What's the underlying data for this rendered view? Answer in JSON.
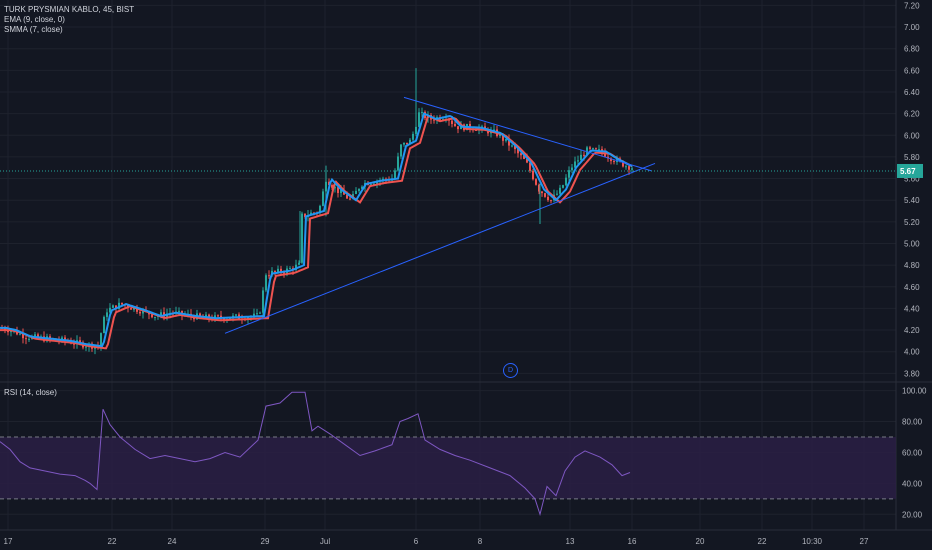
{
  "legend": {
    "symbol": "TURK PRYSMIAN KABLO, 45, BIST",
    "ema": "EMA (9, close, 0)",
    "smma": "SMMA (7, close)",
    "rsi": "RSI (14, close)"
  },
  "price_badge": "5.67",
  "d_marker": "D",
  "colors": {
    "background": "#131722",
    "grid": "#1e222d",
    "ema": "#2196f3",
    "smma": "#ef5350",
    "trendline": "#2962ff",
    "price_line": "#26a69a",
    "rsi": "#7e57c2",
    "rsi_band": "#2a1e44",
    "candle_up": "#26a69a",
    "candle_down": "#ef5350",
    "text": "#b2b5be"
  },
  "chart_data": [
    {
      "type": "candlestick",
      "title": "TURK PRYSMIAN KABLO, 45, BIST",
      "x_ticks": [
        "17",
        "22",
        "24",
        "29",
        "Jul",
        "6",
        "8",
        "13",
        "16",
        "20",
        "22",
        "10:30",
        "27"
      ],
      "y_ticks": [
        3.8,
        4.0,
        4.2,
        4.4,
        4.6,
        4.8,
        5.0,
        5.2,
        5.4,
        5.6,
        5.8,
        6.0,
        6.2,
        6.4,
        6.6,
        6.8,
        7.0,
        7.2
      ],
      "ylim": [
        3.72,
        7.25
      ],
      "last_price": 5.67,
      "series": [
        {
          "name": "EMA (9, close, 0)",
          "color": "#2196f3"
        },
        {
          "name": "SMMA (7, close)",
          "color": "#ef5350"
        }
      ],
      "close_path": [
        [
          0,
          4.22
        ],
        [
          10,
          4.2
        ],
        [
          25,
          4.14
        ],
        [
          45,
          4.12
        ],
        [
          65,
          4.1
        ],
        [
          80,
          4.07
        ],
        [
          97,
          4.05
        ],
        [
          105,
          4.38
        ],
        [
          120,
          4.44
        ],
        [
          140,
          4.38
        ],
        [
          155,
          4.33
        ],
        [
          170,
          4.36
        ],
        [
          190,
          4.33
        ],
        [
          210,
          4.31
        ],
        [
          235,
          4.32
        ],
        [
          258,
          4.33
        ],
        [
          265,
          4.72
        ],
        [
          285,
          4.75
        ],
        [
          298,
          4.8
        ],
        [
          300,
          5.25
        ],
        [
          318,
          5.3
        ],
        [
          325,
          5.6
        ],
        [
          335,
          5.5
        ],
        [
          350,
          5.4
        ],
        [
          360,
          5.55
        ],
        [
          375,
          5.58
        ],
        [
          392,
          5.6
        ],
        [
          400,
          5.9
        ],
        [
          410,
          5.95
        ],
        [
          418,
          6.2
        ],
        [
          430,
          6.15
        ],
        [
          445,
          6.18
        ],
        [
          455,
          6.08
        ],
        [
          475,
          6.07
        ],
        [
          495,
          6.02
        ],
        [
          510,
          5.9
        ],
        [
          525,
          5.75
        ],
        [
          538,
          5.5
        ],
        [
          550,
          5.4
        ],
        [
          560,
          5.5
        ],
        [
          570,
          5.7
        ],
        [
          585,
          5.86
        ],
        [
          600,
          5.85
        ],
        [
          612,
          5.78
        ],
        [
          625,
          5.72
        ],
        [
          632,
          5.7
        ]
      ],
      "trendlines": [
        {
          "from": [
            404,
            6.35
          ],
          "to": [
            652,
            5.67
          ]
        },
        {
          "from": [
            225,
            4.17
          ],
          "to": [
            655,
            5.74
          ]
        }
      ]
    },
    {
      "type": "line",
      "title": "RSI (14, close)",
      "y_ticks": [
        20.0,
        40.0,
        60.0,
        80.0,
        100.0
      ],
      "ylim": [
        15,
        103
      ],
      "bands": [
        30,
        70
      ],
      "series": [
        {
          "name": "RSI (14, close)",
          "color": "#7e57c2",
          "points": [
            [
              0,
              67
            ],
            [
              10,
              62
            ],
            [
              20,
              54
            ],
            [
              30,
              50
            ],
            [
              45,
              48
            ],
            [
              60,
              46
            ],
            [
              75,
              45
            ],
            [
              85,
              42
            ],
            [
              90,
              40
            ],
            [
              97,
              36
            ],
            [
              103,
              88
            ],
            [
              110,
              78
            ],
            [
              120,
              70
            ],
            [
              135,
              62
            ],
            [
              150,
              56
            ],
            [
              165,
              58
            ],
            [
              180,
              56
            ],
            [
              195,
              54
            ],
            [
              210,
              56
            ],
            [
              225,
              60
            ],
            [
              240,
              57
            ],
            [
              258,
              68
            ],
            [
              266,
              90
            ],
            [
              280,
              92
            ],
            [
              292,
              99
            ],
            [
              305,
              99
            ],
            [
              312,
              74
            ],
            [
              318,
              77
            ],
            [
              330,
              72
            ],
            [
              345,
              65
            ],
            [
              360,
              58
            ],
            [
              375,
              61
            ],
            [
              392,
              65
            ],
            [
              400,
              80
            ],
            [
              408,
              82
            ],
            [
              418,
              85
            ],
            [
              425,
              68
            ],
            [
              440,
              62
            ],
            [
              455,
              58
            ],
            [
              470,
              55
            ],
            [
              490,
              50
            ],
            [
              510,
              45
            ],
            [
              525,
              37
            ],
            [
              535,
              30
            ],
            [
              540,
              20
            ],
            [
              547,
              38
            ],
            [
              556,
              32
            ],
            [
              565,
              48
            ],
            [
              575,
              57
            ],
            [
              585,
              61
            ],
            [
              600,
              57
            ],
            [
              612,
              52
            ],
            [
              622,
              45
            ],
            [
              630,
              47
            ]
          ]
        }
      ]
    }
  ]
}
